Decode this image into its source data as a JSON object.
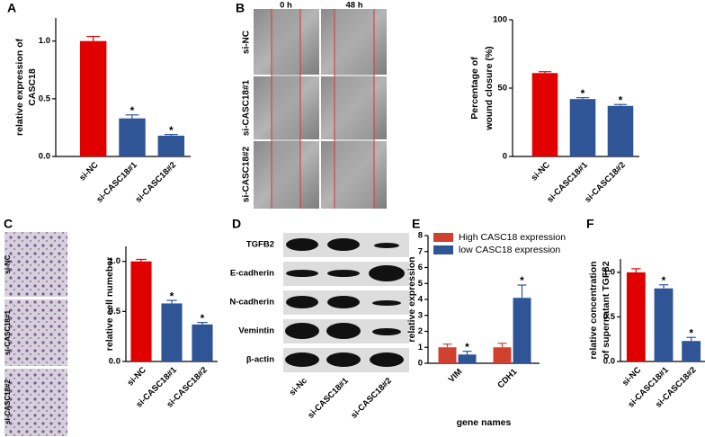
{
  "panel_letters": [
    "A",
    "B",
    "C",
    "D",
    "E",
    "F"
  ],
  "wound_images": {
    "columns": [
      "0 h",
      "48 h"
    ],
    "rows": [
      "si-NC",
      "si-CASC18#1",
      "si-CASC18#2"
    ]
  },
  "transwell_images": {
    "rows": [
      "si-NC",
      "si-CASC18#1",
      "si-CASC18#2"
    ]
  },
  "western_blot": {
    "proteins": [
      "TGFB2",
      "E-cadherin",
      "N-cadherin",
      "Vemintin",
      "β-actin"
    ],
    "lanes": [
      "si-Nc",
      "si-CASC18#1",
      "si-CASC18#2"
    ]
  },
  "chart_data": [
    {
      "type": "bar",
      "y_label": [
        "relative expression of",
        "CASC18"
      ],
      "categories": [
        "si-NC",
        "si-CASC18#1",
        "si-CASC18#2"
      ],
      "values": [
        1.0,
        0.33,
        0.18
      ],
      "errors": [
        0.04,
        0.03,
        0.01
      ],
      "colors": [
        "#e00000",
        "#2f5597",
        "#2f5597"
      ],
      "significance": [
        null,
        "*",
        "*"
      ],
      "ylim": [
        0,
        1.2
      ],
      "yticks": [
        {
          "value": 0,
          "label": "0.0"
        },
        {
          "value": 0.5,
          "label": "0.5"
        },
        {
          "value": 1,
          "label": "1.0"
        }
      ]
    },
    {
      "type": "bar",
      "y_label": [
        "Percentage of",
        "wound closure (%)"
      ],
      "categories": [
        "si-NC",
        "si-CASC18#1",
        "si-CASC18#2"
      ],
      "values": [
        61,
        42,
        37
      ],
      "errors": [
        1,
        1,
        1
      ],
      "colors": [
        "#e00000",
        "#2f5597",
        "#2f5597"
      ],
      "significance": [
        null,
        "*",
        "*"
      ],
      "ylim": [
        0,
        100
      ],
      "yticks": [
        0,
        50,
        100
      ]
    },
    {
      "type": "bar",
      "y_label": [
        "relative cell numeber"
      ],
      "categories": [
        "si-NC",
        "si-CASC18#1",
        "si-CASC18#2"
      ],
      "values": [
        1.0,
        0.58,
        0.37
      ],
      "errors": [
        0.02,
        0.03,
        0.02
      ],
      "colors": [
        "#e00000",
        "#2f5597",
        "#2f5597"
      ],
      "significance": [
        null,
        "*",
        "*"
      ],
      "ylim": [
        0,
        1.15
      ],
      "yticks": [
        {
          "value": 0,
          "label": "0.0"
        },
        {
          "value": 0.5,
          "label": "0.5"
        },
        {
          "value": 1,
          "label": "1.0"
        }
      ]
    },
    {
      "type": "grouped_bar",
      "y_label": [
        "relative expression"
      ],
      "x_label": "gene names",
      "categories": [
        "VIM",
        "CDH1"
      ],
      "series": [
        {
          "name": "High CASC18 expression",
          "color": "#d0402f",
          "values": [
            1.0,
            1.0
          ],
          "errors": [
            0.2,
            0.25
          ],
          "significance": [
            null,
            null
          ]
        },
        {
          "name": "low CASC18 expression",
          "color": "#2f5597",
          "values": [
            0.55,
            4.1
          ],
          "errors": [
            0.2,
            0.8
          ],
          "significance": [
            "*",
            "*"
          ]
        }
      ],
      "legend": "top-left",
      "ylim": [
        0,
        8
      ],
      "yticks": [
        0,
        1,
        2,
        3,
        4,
        5,
        6,
        7,
        8
      ]
    },
    {
      "type": "bar",
      "y_label": [
        "relative concentration",
        "of supernatant TGFβ2"
      ],
      "categories": [
        "si-NC",
        "si-CASC18#1",
        "si-CASC18#2"
      ],
      "values": [
        1.0,
        0.82,
        0.23
      ],
      "errors": [
        0.04,
        0.04,
        0.04
      ],
      "colors": [
        "#e00000",
        "#2f5597",
        "#2f5597"
      ],
      "significance": [
        null,
        "*",
        "*"
      ],
      "ylim": [
        0,
        1.15
      ],
      "yticks": [
        {
          "value": 0,
          "label": "0.0"
        },
        {
          "value": 0.5,
          "label": "0.5"
        },
        {
          "value": 1,
          "label": "1.0"
        }
      ]
    }
  ]
}
